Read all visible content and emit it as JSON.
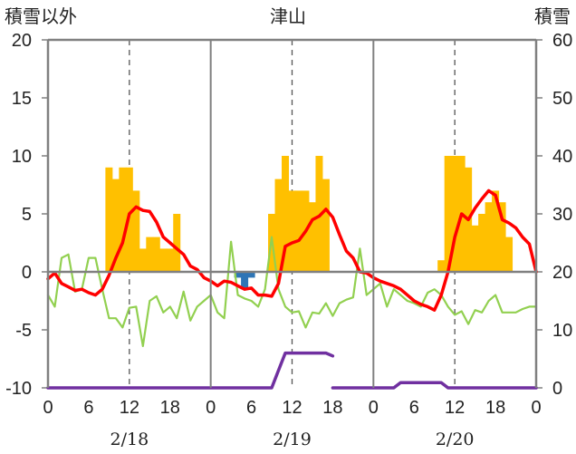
{
  "chart_data": {
    "type": "bar",
    "title": "津山",
    "left_axis_title": "積雪以外",
    "right_axis_title": "積雪",
    "left_axis": {
      "min": -10,
      "max": 20,
      "ticks": [
        "-10",
        "-5",
        "0",
        "5",
        "10",
        "15",
        "20"
      ]
    },
    "right_axis": {
      "min": 0,
      "max": 60,
      "ticks": [
        "0",
        "10",
        "20",
        "30",
        "40",
        "50",
        "60"
      ]
    },
    "hour_ticks": [
      "0",
      "6",
      "12",
      "18"
    ],
    "end_tick": "0",
    "day_labels": [
      "2/18",
      "2/19",
      "2/20"
    ],
    "grid": "dashed verticals at 12h, solid separators at midnight",
    "colors": {
      "snow_bars": "#FFC000",
      "precip_bars": "#2E75B6",
      "temperature": "#FF0000",
      "humidity": "#92D050",
      "snow_depth": "#7030A0",
      "axis": "#808080"
    },
    "series": [
      {
        "axis": "left",
        "kind": "bar",
        "x": [
          9,
          10,
          11,
          12,
          13,
          14,
          15,
          16,
          17,
          18,
          19,
          33,
          34,
          35,
          36,
          37,
          38,
          39,
          40,
          41,
          42,
          43,
          44,
          45,
          58,
          59,
          60,
          61,
          62,
          63,
          64,
          65,
          66,
          67,
          68,
          69
        ],
        "values": [
          9,
          8,
          9,
          9,
          7,
          2,
          3,
          3,
          2,
          2,
          5,
          5,
          8,
          10,
          7,
          7,
          7,
          6,
          10,
          8,
          0,
          0,
          0,
          0,
          1,
          10,
          10,
          10,
          9,
          4,
          5,
          6,
          7,
          6,
          3,
          0
        ]
      },
      {
        "axis": "left",
        "kind": "bar",
        "x": [
          28,
          29,
          30
        ],
        "values": [
          -0.5,
          -1.5,
          -0.5
        ]
      },
      {
        "axis": "left",
        "kind": "line",
        "x": [
          0,
          1,
          2,
          3,
          4,
          5,
          6,
          7,
          8,
          9,
          10,
          11,
          12,
          13,
          14,
          15,
          16,
          17,
          18,
          19,
          20,
          21,
          22,
          23,
          24,
          25,
          26,
          27,
          28,
          29,
          30,
          31,
          32,
          33,
          34,
          35,
          36,
          37,
          38,
          39,
          40,
          41,
          42,
          43,
          44,
          45,
          46,
          47,
          48,
          49,
          50,
          51,
          52,
          53,
          54,
          55,
          56,
          57,
          58,
          59,
          60,
          61,
          62,
          63,
          64,
          65,
          66,
          67,
          68,
          69,
          70,
          71,
          72
        ],
        "values": [
          -0.6,
          -0.1,
          -1,
          -1.3,
          -1.6,
          -1.5,
          -1.8,
          -2,
          -1.5,
          -0.3,
          1.2,
          2.5,
          5,
          5.6,
          5.3,
          5.2,
          4.3,
          3,
          2.5,
          2,
          1.5,
          0.5,
          0.2,
          -0.5,
          -0.8,
          -1.2,
          -0.8,
          -0.9,
          -1.2,
          -1.5,
          -1.4,
          -2,
          -2,
          -2.1,
          -1,
          2.2,
          2.5,
          2.7,
          3.5,
          4.5,
          4.8,
          5.4,
          4.7,
          3.2,
          1.8,
          1.2,
          0,
          -0.1,
          -0.5,
          -0.8,
          -1,
          -1.2,
          -1.5,
          -2,
          -2.5,
          -2.8,
          -3,
          -3.3,
          -2,
          0,
          3,
          5,
          4.5,
          5.5,
          6.3,
          7,
          6.6,
          4.5,
          4.2,
          3.8,
          3,
          2.4,
          0
        ]
      },
      {
        "axis": "left",
        "kind": "line",
        "x": [
          0,
          1,
          2,
          3,
          4,
          5,
          6,
          7,
          8,
          9,
          10,
          11,
          12,
          13,
          14,
          15,
          16,
          17,
          18,
          19,
          20,
          21,
          22,
          23,
          24,
          25,
          26,
          27,
          28,
          29,
          30,
          31,
          32,
          33,
          34,
          35,
          36,
          37,
          38,
          39,
          40,
          41,
          42,
          43,
          44,
          45,
          46,
          47,
          48,
          49,
          50,
          51,
          52,
          53,
          54,
          55,
          56,
          57,
          58,
          59,
          60,
          61,
          62,
          63,
          64,
          65,
          66,
          67,
          69,
          70,
          71,
          72
        ],
        "values": [
          -2,
          -3,
          1.2,
          1.5,
          -1.7,
          -1.5,
          1.2,
          1.2,
          -1.5,
          -4,
          -4,
          -4.8,
          -3.1,
          -3,
          -6.4,
          -2.5,
          -2.1,
          -3.5,
          -3,
          -4,
          -1.7,
          -4.2,
          -3,
          -2.5,
          -2,
          -3.5,
          -4,
          2.6,
          -2,
          -2.3,
          -2.5,
          -3,
          -1.5,
          3,
          -1.5,
          -3,
          -3.5,
          -3.4,
          -4.8,
          -3.5,
          -3.6,
          -2.7,
          -3.8,
          -2.7,
          -2.4,
          -2.2,
          2,
          -2,
          -1.5,
          -1,
          -3,
          -1.5,
          -2,
          -2.5,
          -2.7,
          -3,
          -1.8,
          -1.5,
          -2,
          -3,
          -3.7,
          -3.4,
          -4.5,
          -3.3,
          -3.5,
          -2.5,
          -2,
          -3.5,
          -3.5,
          -3.2,
          -3,
          -3
        ]
      },
      {
        "axis": "right",
        "kind": "line",
        "x": [
          0,
          32,
          33,
          34,
          35,
          36,
          37,
          38,
          39,
          40,
          41,
          42
        ],
        "values": [
          0,
          0,
          0,
          3,
          6,
          6,
          6,
          6,
          6,
          6,
          6,
          5.5
        ]
      },
      {
        "axis": "right",
        "kind": "line",
        "x": [
          42,
          48,
          49,
          50,
          51,
          52,
          53,
          54,
          55,
          56,
          57,
          58,
          59,
          60,
          72
        ],
        "values": [
          0,
          0,
          0,
          0,
          0,
          0.9,
          0.9,
          0.9,
          0.9,
          0.9,
          0.9,
          0.9,
          0,
          0,
          0
        ]
      }
    ]
  }
}
